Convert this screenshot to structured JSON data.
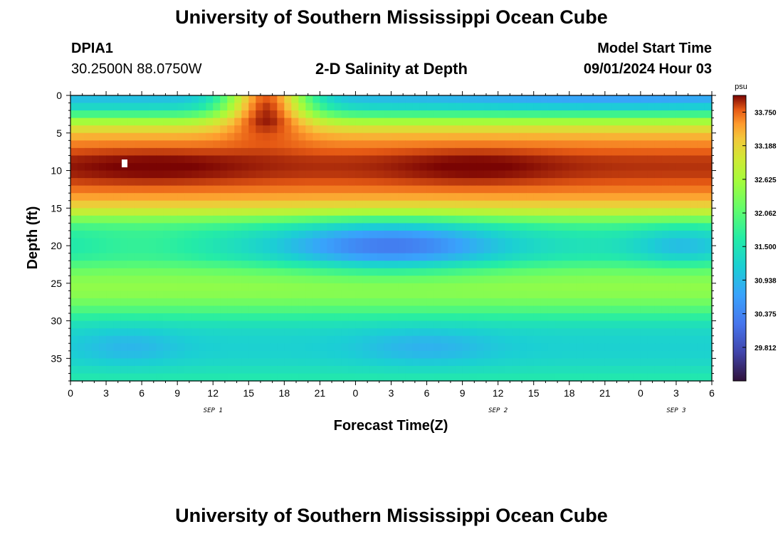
{
  "header": {
    "title": "University of Southern Mississippi Ocean Cube",
    "station_id": "DPIA1",
    "station_coords": "30.2500N  88.0750W",
    "subtitle": "2-D Salinity at Depth",
    "start_label": "Model Start Time",
    "start_value": "09/01/2024 Hour 03"
  },
  "footer": {
    "title": "University of Southern Mississippi Ocean Cube"
  },
  "chart_data": {
    "type": "heatmap",
    "title": "2-D Salinity at Depth",
    "xlabel": "Forecast Time(Z)",
    "ylabel": "Depth (ft)",
    "x_tick_labels": [
      "0",
      "3",
      "6",
      "9",
      "12",
      "15",
      "18",
      "21",
      "0",
      "3",
      "6",
      "9",
      "12",
      "15",
      "18",
      "21",
      "0",
      "3",
      "6"
    ],
    "x_range_hours": [
      0,
      54
    ],
    "date_labels": [
      {
        "text": "SEP 1",
        "hour": 12
      },
      {
        "text": "SEP 2",
        "hour": 36
      },
      {
        "text": "SEP 3",
        "hour": 51
      }
    ],
    "y_ticks": [
      0,
      5,
      10,
      15,
      20,
      25,
      30,
      35
    ],
    "y_range": [
      0,
      38
    ],
    "colorbar": {
      "unit": "psu",
      "min": 29.25,
      "max": 34.03,
      "labels": [
        "33.750",
        "33.188",
        "32.625",
        "32.062",
        "31.500",
        "30.938",
        "30.375",
        "29.812"
      ]
    },
    "depth_profile": [
      {
        "depth": 0,
        "value": 30.9
      },
      {
        "depth": 1,
        "value": 31.1
      },
      {
        "depth": 2,
        "value": 31.5
      },
      {
        "depth": 3,
        "value": 32.3
      },
      {
        "depth": 4,
        "value": 32.9
      },
      {
        "depth": 5,
        "value": 33.3
      },
      {
        "depth": 6,
        "value": 33.55
      },
      {
        "depth": 7,
        "value": 33.7
      },
      {
        "depth": 8,
        "value": 33.85
      },
      {
        "depth": 9,
        "value": 33.9
      },
      {
        "depth": 10,
        "value": 33.9
      },
      {
        "depth": 11,
        "value": 33.85
      },
      {
        "depth": 12,
        "value": 33.75
      },
      {
        "depth": 13,
        "value": 33.6
      },
      {
        "depth": 14,
        "value": 33.4
      },
      {
        "depth": 15,
        "value": 33.1
      },
      {
        "depth": 16,
        "value": 32.6
      },
      {
        "depth": 17,
        "value": 32.0
      },
      {
        "depth": 18,
        "value": 31.7
      },
      {
        "depth": 19,
        "value": 31.55
      },
      {
        "depth": 20,
        "value": 31.5
      },
      {
        "depth": 21,
        "value": 31.55
      },
      {
        "depth": 22,
        "value": 31.75
      },
      {
        "depth": 23,
        "value": 32.1
      },
      {
        "depth": 24,
        "value": 32.3
      },
      {
        "depth": 25,
        "value": 32.45
      },
      {
        "depth": 26,
        "value": 32.45
      },
      {
        "depth": 27,
        "value": 32.35
      },
      {
        "depth": 28,
        "value": 32.1
      },
      {
        "depth": 29,
        "value": 31.85
      },
      {
        "depth": 30,
        "value": 31.55
      },
      {
        "depth": 31,
        "value": 31.35
      },
      {
        "depth": 32,
        "value": 31.25
      },
      {
        "depth": 33,
        "value": 31.2
      },
      {
        "depth": 34,
        "value": 31.2
      },
      {
        "depth": 35,
        "value": 31.25
      },
      {
        "depth": 36,
        "value": 31.35
      },
      {
        "depth": 37,
        "value": 31.5
      },
      {
        "depth": 38,
        "value": 31.6
      }
    ],
    "features": [
      {
        "hour": 16.5,
        "depth": 0.5,
        "delta": 2.8,
        "hour_spread": 2.6,
        "depth_spread": 2.5
      },
      {
        "hour": 46,
        "depth": 0.3,
        "delta": -0.3,
        "hour_spread": 10,
        "depth_spread": 1.2
      },
      {
        "hour": 27,
        "depth": 20,
        "delta": -1.25,
        "hour_spread": 6.5,
        "depth_spread": 2.4
      },
      {
        "hour": 51.5,
        "depth": 20,
        "delta": -0.55,
        "hour_spread": 3,
        "depth_spread": 1.8
      },
      {
        "hour": 6,
        "depth": 20,
        "delta": 0.25,
        "hour_spread": 4,
        "depth_spread": 1.8
      },
      {
        "hour": 5,
        "depth": 33.5,
        "delta": -0.3,
        "hour_spread": 3,
        "depth_spread": 1.8
      },
      {
        "hour": 30,
        "depth": 33.5,
        "delta": -0.35,
        "hour_spread": 4,
        "depth_spread": 1.8
      },
      {
        "hour": 7,
        "depth": 9.5,
        "delta": 0.15,
        "hour_spread": 6,
        "depth_spread": 2
      },
      {
        "hour": 34,
        "depth": 9.5,
        "delta": 0.15,
        "hour_spread": 5,
        "depth_spread": 2
      }
    ]
  }
}
